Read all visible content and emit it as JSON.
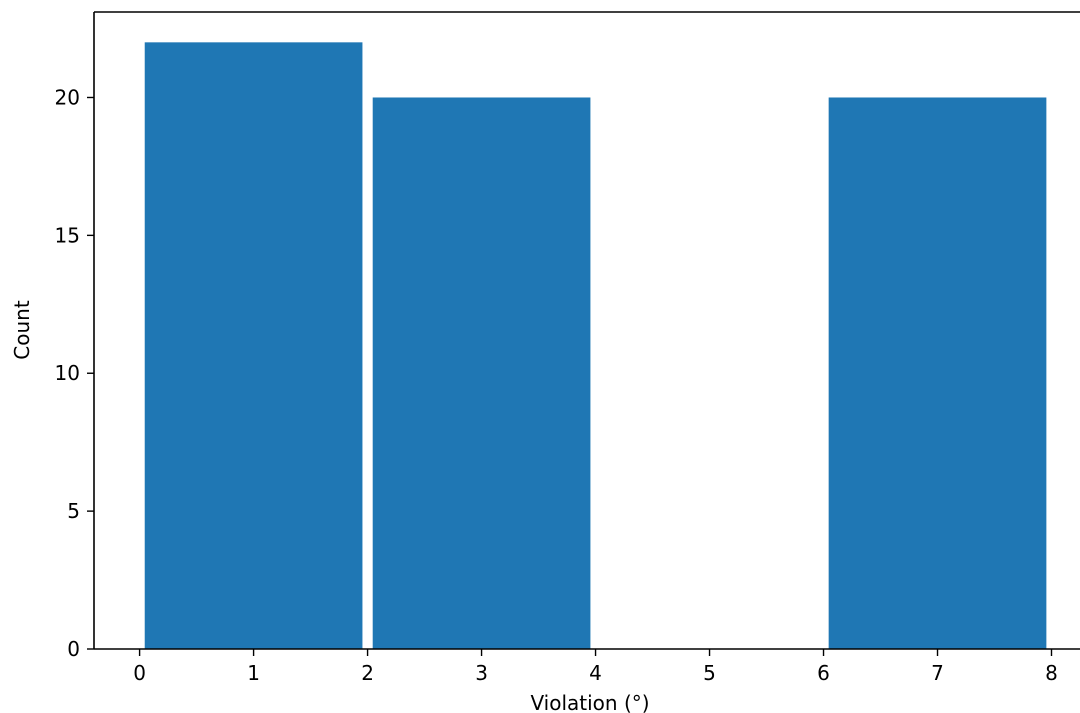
{
  "chart_data": {
    "type": "bar",
    "title": "",
    "xlabel": "Violation (°)",
    "ylabel": "Count",
    "xlim": [
      -0.4,
      8.25
    ],
    "ylim": [
      0,
      23.1
    ],
    "x_ticks": [
      0,
      1,
      2,
      3,
      4,
      5,
      6,
      7,
      8
    ],
    "y_ticks": [
      0,
      5,
      10,
      15,
      20
    ],
    "bins": [
      {
        "x_start": 0,
        "x_end": 2,
        "value": 22
      },
      {
        "x_start": 2,
        "x_end": 4,
        "value": 20
      },
      {
        "x_start": 6,
        "x_end": 8,
        "value": 20
      }
    ],
    "bar_color": "#1f77b4",
    "grid": false,
    "legend": null
  }
}
